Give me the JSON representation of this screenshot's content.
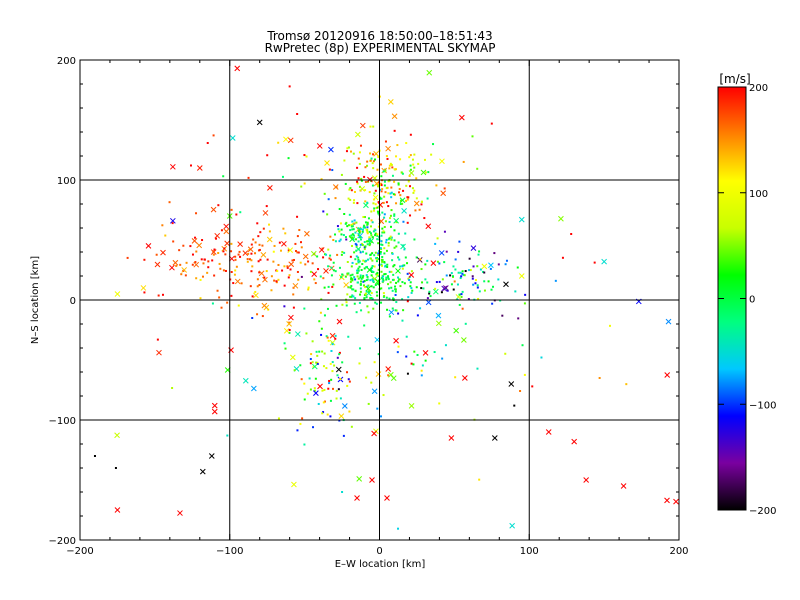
{
  "chart_data": {
    "type": "scatter",
    "title": "Tromsø 20120916 18:50:00–18:51:43",
    "subtitle": "RwPretec (8p) EXPERIMENTAL SKYMAP",
    "xlabel": "E–W location [km]",
    "ylabel": "N–S location [km]",
    "xlim": [
      -200,
      200
    ],
    "ylim": [
      -200,
      200
    ],
    "x_ticks": [
      -200,
      -100,
      0,
      100,
      200
    ],
    "y_ticks": [
      -200,
      -100,
      0,
      100,
      200
    ],
    "x_tick_labels": [
      "−200",
      "−100",
      "0",
      "100",
      "200"
    ],
    "y_tick_labels": [
      "−200",
      "−100",
      "0",
      "100",
      "200"
    ],
    "grid": true,
    "colorbar": {
      "label": "[m/s]",
      "range": [
        -200,
        200
      ],
      "ticks": [
        200,
        100,
        0,
        -100,
        -200
      ],
      "tick_labels": [
        "200",
        "100",
        "0",
        "−100",
        "−200"
      ],
      "colormap": [
        "#000000",
        "#7a00a0",
        "#0000ff",
        "#00c8ff",
        "#00ff80",
        "#00ff00",
        "#c8ff00",
        "#ffff00",
        "#ff8000",
        "#ff0000"
      ]
    },
    "clusters": [
      {
        "cx": -80,
        "cy": 30,
        "sx": 28,
        "sy": 15,
        "n": 170,
        "vmean": 170,
        "vsd": 30,
        "cross_frac": 0.12
      },
      {
        "cx": -120,
        "cy": 40,
        "sx": 20,
        "sy": 20,
        "n": 45,
        "vmean": 175,
        "vsd": 25,
        "cross_frac": 0.2
      },
      {
        "cx": -5,
        "cy": 20,
        "sx": 14,
        "sy": 15,
        "n": 300,
        "vmean": 5,
        "vsd": 35,
        "cross_frac": 0.03
      },
      {
        "cx": -10,
        "cy": 55,
        "sx": 12,
        "sy": 10,
        "n": 150,
        "vmean": 0,
        "vsd": 45,
        "cross_frac": 0.04
      },
      {
        "cx": 5,
        "cy": 95,
        "sx": 16,
        "sy": 18,
        "n": 190,
        "vmean": 90,
        "vsd": 70,
        "cross_frac": 0.06
      },
      {
        "cx": 55,
        "cy": 15,
        "sx": 20,
        "sy": 15,
        "n": 110,
        "vmean": -60,
        "vsd": 80,
        "cross_frac": 0.08
      },
      {
        "cx": -35,
        "cy": -60,
        "sx": 15,
        "sy": 28,
        "n": 110,
        "vmean": 50,
        "vsd": 100,
        "cross_frac": 0.18
      },
      {
        "cx": 20,
        "cy": -40,
        "sx": 25,
        "sy": 35,
        "n": 40,
        "vmean": 60,
        "vsd": 120,
        "cross_frac": 0.25
      },
      {
        "cx": -40,
        "cy": 110,
        "sx": 40,
        "sy": 20,
        "n": 40,
        "vmean": 120,
        "vsd": 80,
        "cross_frac": 0.3
      },
      {
        "cx": 0,
        "cy": 0,
        "sx": 120,
        "sy": 100,
        "n": 70,
        "vmean": 80,
        "vsd": 120,
        "cross_frac": 0.5
      }
    ],
    "sparse_points": [
      {
        "x": -95,
        "y": 193,
        "v": 200,
        "m": "x"
      },
      {
        "x": -138,
        "y": 111,
        "v": 200,
        "m": "x"
      },
      {
        "x": -120,
        "y": 110,
        "v": 190,
        "m": "x"
      },
      {
        "x": -175,
        "y": 5,
        "v": 100,
        "m": "x"
      },
      {
        "x": -100,
        "y": 70,
        "v": 40,
        "m": "x"
      },
      {
        "x": -138,
        "y": 66,
        "v": -120,
        "m": "x"
      },
      {
        "x": -80,
        "y": 148,
        "v": -200,
        "m": "x"
      },
      {
        "x": -98,
        "y": 135,
        "v": -50,
        "m": "x"
      },
      {
        "x": -110,
        "y": -88,
        "v": 200,
        "m": "x"
      },
      {
        "x": -110,
        "y": -93,
        "v": 200,
        "m": "x"
      },
      {
        "x": -118,
        "y": -143,
        "v": -200,
        "m": "x"
      },
      {
        "x": -112,
        "y": -130,
        "v": -200,
        "m": "x"
      },
      {
        "x": -175,
        "y": -175,
        "v": 200,
        "m": "x"
      },
      {
        "x": -190,
        "y": -130,
        "v": -200,
        "m": "."
      },
      {
        "x": -176,
        "y": -140,
        "v": -200,
        "m": "."
      },
      {
        "x": -148,
        "y": -33,
        "v": 200,
        "m": "."
      },
      {
        "x": 57,
        "y": -65,
        "v": 200,
        "m": "x"
      },
      {
        "x": 77,
        "y": -115,
        "v": -200,
        "m": "x"
      },
      {
        "x": 48,
        "y": -115,
        "v": 200,
        "m": "x"
      },
      {
        "x": 113,
        "y": -110,
        "v": 200,
        "m": "x"
      },
      {
        "x": 130,
        "y": -118,
        "v": 200,
        "m": "x"
      },
      {
        "x": 138,
        "y": -150,
        "v": 200,
        "m": "x"
      },
      {
        "x": 163,
        "y": -155,
        "v": 200,
        "m": "x"
      },
      {
        "x": 192,
        "y": -167,
        "v": 200,
        "m": "x"
      },
      {
        "x": 198,
        "y": -168,
        "v": 200,
        "m": "x"
      },
      {
        "x": 193,
        "y": -18,
        "v": -80,
        "m": "x"
      },
      {
        "x": 150,
        "y": 32,
        "v": -50,
        "m": "x"
      },
      {
        "x": 95,
        "y": 67,
        "v": -50,
        "m": "x"
      },
      {
        "x": 95,
        "y": 20,
        "v": 100,
        "m": "x"
      },
      {
        "x": 88,
        "y": -70,
        "v": -200,
        "m": "x"
      },
      {
        "x": 90,
        "y": -88,
        "v": -200,
        "m": "."
      },
      {
        "x": 102,
        "y": -72,
        "v": 200,
        "m": "."
      },
      {
        "x": 128,
        "y": 55,
        "v": 200,
        "m": "."
      },
      {
        "x": 147,
        "y": -65,
        "v": 150,
        "m": "."
      },
      {
        "x": 55,
        "y": 152,
        "v": 200,
        "m": "x"
      },
      {
        "x": 75,
        "y": 147,
        "v": 200,
        "m": "."
      },
      {
        "x": 70,
        "y": 28,
        "v": 100,
        "m": "x"
      },
      {
        "x": 5,
        "y": -165,
        "v": 200,
        "m": "x"
      },
      {
        "x": -15,
        "y": -165,
        "v": 200,
        "m": "x"
      },
      {
        "x": -5,
        "y": -150,
        "v": 200,
        "m": "x"
      },
      {
        "x": -25,
        "y": -160,
        "v": -50,
        "m": "."
      },
      {
        "x": -55,
        "y": 155,
        "v": 200,
        "m": "."
      },
      {
        "x": -60,
        "y": 178,
        "v": 200,
        "m": "."
      },
      {
        "x": -60,
        "y": -25,
        "v": 200,
        "m": "."
      },
      {
        "x": -85,
        "y": -15,
        "v": -100,
        "m": "."
      }
    ]
  }
}
